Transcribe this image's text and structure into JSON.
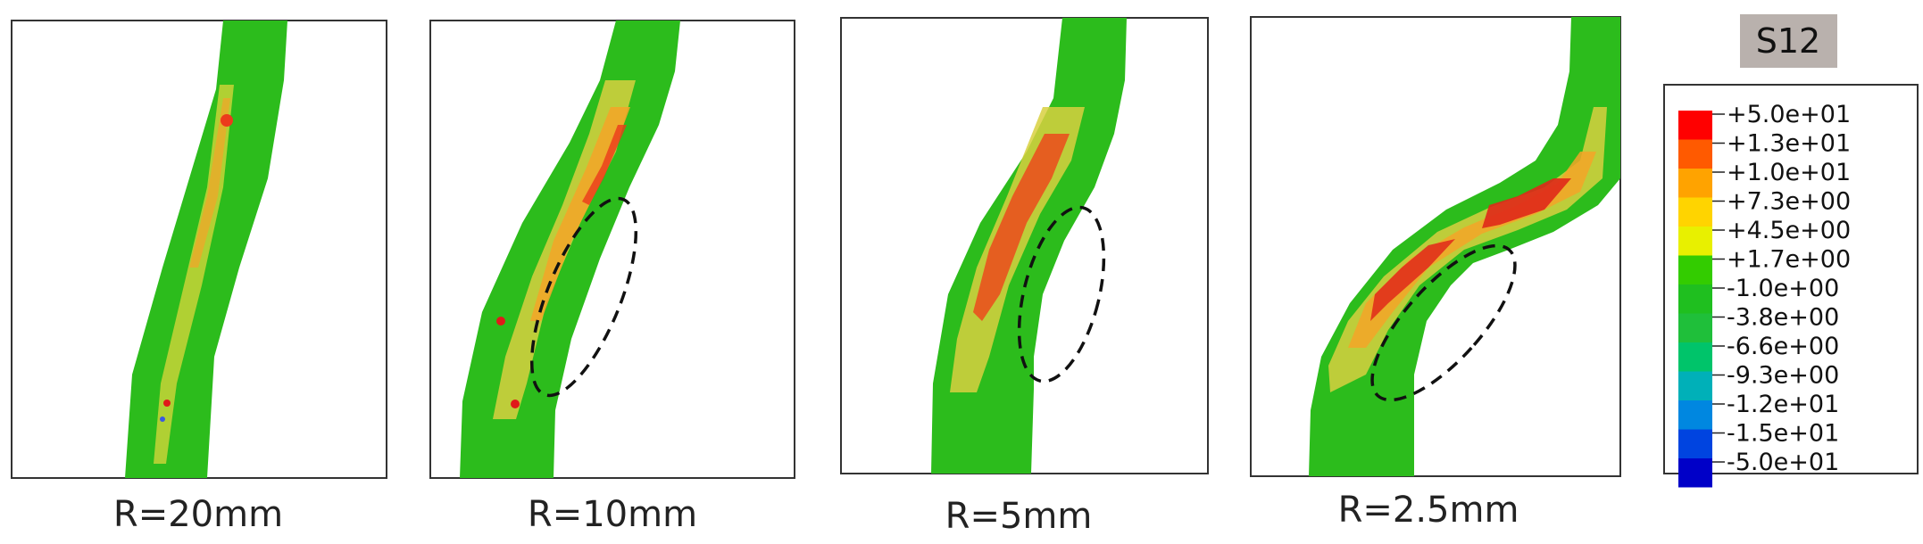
{
  "panels": [
    {
      "caption": "R=20mm"
    },
    {
      "caption": "R=10mm"
    },
    {
      "caption": "R=5mm"
    },
    {
      "caption": "R=2.5mm"
    }
  ],
  "legend": {
    "title": "S12",
    "values": [
      "+5.0e+01",
      "+1.3e+01",
      "+1.0e+01",
      "+7.3e+00",
      "+4.5e+00",
      "+1.7e+00",
      "-1.0e+00",
      "-3.8e+00",
      "-6.6e+00",
      "-9.3e+00",
      "-1.2e+01",
      "-1.5e+01",
      "-5.0e+01"
    ],
    "colors": [
      "#ff0000",
      "#ff5a00",
      "#ffa300",
      "#ffd400",
      "#e8f000",
      "#33cc00",
      "#1fbf1f",
      "#1fbf3a",
      "#00c46a",
      "#00b0b8",
      "#0087e0",
      "#0044e0",
      "#0000c8"
    ]
  },
  "colors": {
    "green": "#2cbc1c",
    "yellow_green": "#b8d830",
    "yellow": "#e8d43a",
    "orange": "#f5a428",
    "red_orange": "#ec5a1c",
    "red": "#e01a1a"
  }
}
